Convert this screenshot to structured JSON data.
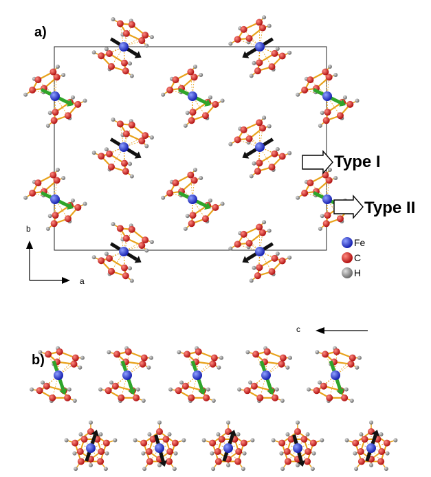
{
  "panels": {
    "a_label": "a)",
    "b_label": "b)"
  },
  "types": {
    "type1": "Type I",
    "type2": "Type II"
  },
  "axes": {
    "a": "a",
    "b": "b",
    "c": "c"
  },
  "legend": [
    {
      "symbol": "Fe",
      "color": "#1f2fd0"
    },
    {
      "symbol": "C",
      "color": "#e2231a"
    },
    {
      "symbol": "H",
      "color": "#8a8a8a"
    }
  ],
  "colors": {
    "bond": "#e8a21a",
    "spin_type1": "#111111",
    "spin_type2": "#2fa52a"
  }
}
